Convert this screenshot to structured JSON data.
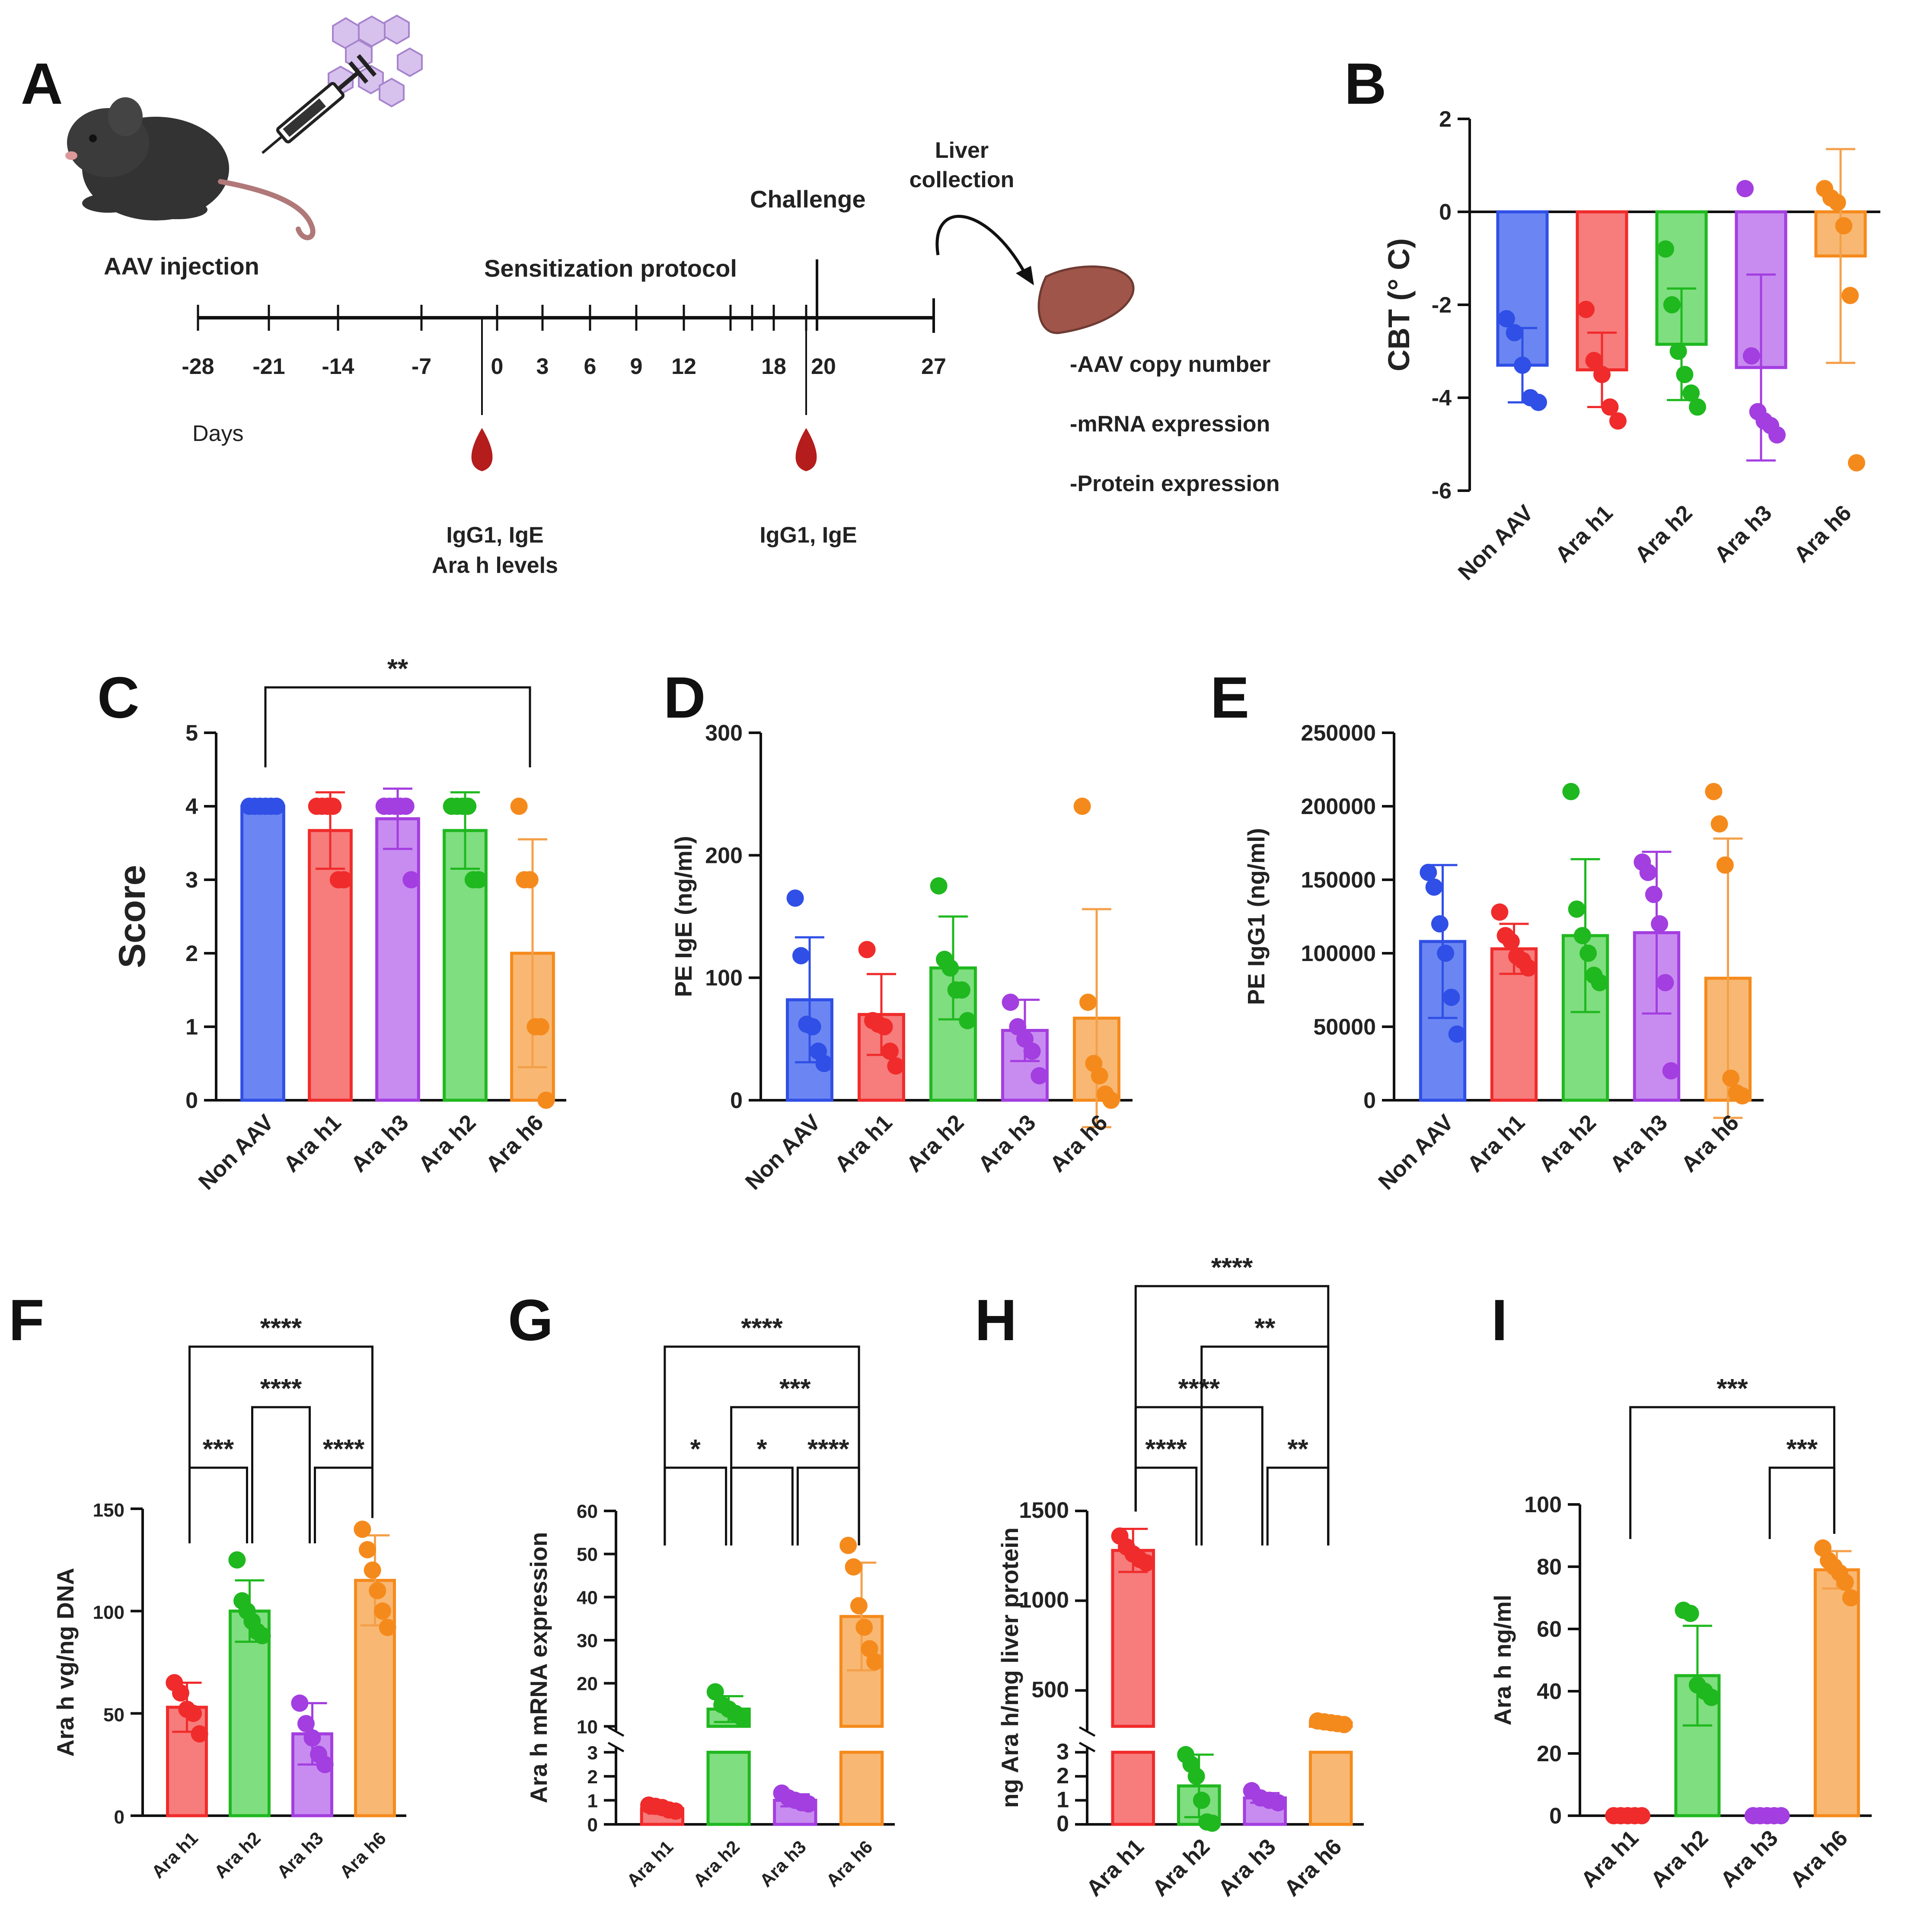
{
  "colors": {
    "blue": "#2f4fe6",
    "blue_fill": "#6b86f2",
    "red": "#f02b2b",
    "red_fill": "#f77c7c",
    "green": "#1fb81f",
    "green_fill": "#7fde7f",
    "purple": "#a33ee0",
    "purple_fill": "#c88cf0",
    "orange": "#f58a1c",
    "orange_fill": "#f8b873",
    "err_orange": "#f4a04a",
    "axis": "#111111",
    "blood": "#b51c1c",
    "liver": "#a0554a",
    "mouse": "#333333",
    "virus": "#c9a8e6"
  },
  "panel_a": {
    "letter": "A",
    "aav_injection": "AAV injection",
    "sensitization": "Sensitization protocol",
    "challenge": "Challenge",
    "liver_collection_line1": "Liver",
    "liver_collection_line2": "collection",
    "days_label": "Days",
    "days": [
      "-28",
      "-21",
      "-14",
      "-7",
      "0",
      "3",
      "6",
      "9",
      "12",
      "18",
      "20",
      "27"
    ],
    "bleed1_line1": "IgG1, IgE",
    "bleed1_line2": "Ara h levels",
    "bleed2": "IgG1, IgE",
    "readouts": [
      "-AAV copy number",
      "-mRNA expression",
      "-Protein expression"
    ],
    "mouse_icon": "mouse-icon",
    "syringe_icon": "syringe-icon",
    "virus_icon": "virus-particles-icon",
    "blood_icon": "blood-drop-icon",
    "liver_icon": "liver-icon"
  },
  "chart_data": [
    {
      "panel": "B",
      "type": "bar",
      "title": "",
      "ylabel": "CBT (° C)",
      "xlabel": "",
      "ylim": [
        -6,
        2
      ],
      "yticks": [
        2,
        0,
        -2,
        -4,
        -6
      ],
      "categories": [
        "Non AAV",
        "Ara h1",
        "Ara h2",
        "Ara h3",
        "Ara h6"
      ],
      "series": [
        {
          "name": "CBT",
          "values": [
            -3.3,
            -3.4,
            -2.85,
            -3.35,
            -0.95
          ],
          "sd": [
            0.8,
            0.8,
            1.2,
            2.0,
            2.3
          ],
          "points": [
            [
              -2.3,
              -2.6,
              -3.3,
              -4.0,
              -4.1
            ],
            [
              -2.1,
              -3.2,
              -3.5,
              -4.2,
              -4.5
            ],
            [
              -0.8,
              -2.0,
              -3.0,
              -3.5,
              -3.9,
              -4.2
            ],
            [
              0.5,
              -3.1,
              -4.3,
              -4.5,
              -4.6,
              -4.8
            ],
            [
              0.5,
              0.3,
              0.2,
              -0.3,
              -1.8,
              -5.4
            ]
          ]
        }
      ],
      "significance": []
    },
    {
      "panel": "C",
      "type": "bar",
      "title": "",
      "ylabel": "Score",
      "xlabel": "",
      "ylim": [
        0,
        5
      ],
      "yticks": [
        0,
        1,
        2,
        3,
        4,
        5
      ],
      "categories": [
        "Non AAV",
        "Ara h1",
        "Ara h3",
        "Ara h2",
        "Ara h6"
      ],
      "series": [
        {
          "name": "Score",
          "values": [
            4,
            3.67,
            3.83,
            3.67,
            2.0
          ],
          "sd": [
            0,
            0.52,
            0.41,
            0.52,
            1.55
          ],
          "points": [
            [
              4,
              4,
              4,
              4,
              4,
              4
            ],
            [
              4,
              4,
              4,
              4,
              3,
              3
            ],
            [
              4,
              4,
              4,
              4,
              4,
              3
            ],
            [
              4,
              4,
              4,
              4,
              3,
              3
            ],
            [
              4,
              3,
              3,
              1,
              1,
              0
            ]
          ]
        }
      ],
      "significance": [
        {
          "from": 0,
          "to": 4,
          "label": "**"
        }
      ]
    },
    {
      "panel": "D",
      "type": "bar",
      "title": "",
      "ylabel": "PE IgE (ng/ml)",
      "xlabel": "",
      "ylim": [
        0,
        300
      ],
      "yticks": [
        0,
        100,
        200,
        300
      ],
      "categories": [
        "Non AAV",
        "Ara h1",
        "Ara h2",
        "Ara h3",
        "Ara h6"
      ],
      "series": [
        {
          "name": "PE IgE",
          "values": [
            82,
            70,
            108,
            57,
            67
          ],
          "sd": [
            51,
            33,
            42,
            25,
            89
          ],
          "points": [
            [
              165,
              118,
              62,
              60,
              40,
              30
            ],
            [
              123,
              65,
              62,
              60,
              40,
              28
            ],
            [
              175,
              115,
              108,
              90,
              90,
              65
            ],
            [
              80,
              60,
              50,
              40,
              20
            ],
            [
              240,
              80,
              30,
              20,
              5,
              0
            ]
          ]
        }
      ],
      "significance": []
    },
    {
      "panel": "E",
      "type": "bar",
      "title": "",
      "ylabel": "PE IgG1 (ng/ml)",
      "xlabel": "",
      "ylim": [
        0,
        250000
      ],
      "yticks": [
        0,
        50000,
        100000,
        150000,
        200000,
        250000
      ],
      "categories": [
        "Non AAV",
        "Ara h1",
        "Ara h2",
        "Ara h3",
        "Ara h6"
      ],
      "series": [
        {
          "name": "PE IgG1",
          "values": [
            108000,
            103000,
            112000,
            114000,
            83000
          ],
          "sd": [
            52000,
            17000,
            52000,
            55000,
            95000
          ],
          "points": [
            [
              155000,
              145000,
              120000,
              100000,
              70000,
              45000
            ],
            [
              128000,
              112000,
              108000,
              98000,
              95000,
              90000
            ],
            [
              210000,
              130000,
              112000,
              100000,
              85000,
              80000
            ],
            [
              162000,
              155000,
              140000,
              120000,
              80000,
              20000
            ],
            [
              210000,
              188000,
              160000,
              15000,
              5000,
              3000
            ]
          ]
        }
      ],
      "significance": []
    },
    {
      "panel": "F",
      "type": "bar",
      "title": "",
      "ylabel": "Ara h vg/ng DNA",
      "xlabel": "",
      "ylim": [
        0,
        150
      ],
      "yticks": [
        0,
        50,
        100,
        150
      ],
      "categories": [
        "Ara h1",
        "Ara h2",
        "Ara h3",
        "Ara h6"
      ],
      "series": [
        {
          "name": "vg/ng DNA",
          "values": [
            53,
            100,
            40,
            115
          ],
          "sd": [
            12,
            15,
            15,
            22
          ],
          "points": [
            [
              65,
              60,
              52,
              50,
              40
            ],
            [
              125,
              105,
              100,
              95,
              90,
              88
            ],
            [
              55,
              45,
              38,
              30,
              25
            ],
            [
              140,
              130,
              120,
              110,
              100,
              92
            ]
          ]
        }
      ],
      "significance": [
        {
          "from": 0,
          "to": 1,
          "label": "***"
        },
        {
          "from": 2,
          "to": 3,
          "label": "****"
        },
        {
          "from": 1,
          "to": 2,
          "label": "****"
        },
        {
          "from": 0,
          "to": 3,
          "label": "****"
        }
      ]
    },
    {
      "panel": "G",
      "type": "bar",
      "title": "",
      "ylabel": "Ara h mRNA expression",
      "xlabel": "",
      "ylim": [
        0,
        60
      ],
      "axis_break": {
        "lower": [
          0,
          3
        ],
        "upper": [
          10,
          60
        ]
      },
      "yticks_lower": [
        0,
        1,
        2,
        3
      ],
      "yticks_upper": [
        10,
        20,
        30,
        40,
        50,
        60
      ],
      "categories": [
        "Ara h1",
        "Ara h2",
        "Ara h3",
        "Ara h6"
      ],
      "series": [
        {
          "name": "mRNA",
          "values": [
            0.65,
            14,
            1.0,
            35.5
          ],
          "sd": [
            0.2,
            3.0,
            0.25,
            12.5
          ],
          "points": [
            [
              0.8,
              0.75,
              0.7,
              0.6,
              0.55
            ],
            [
              18,
              15,
              14,
              13,
              12
            ],
            [
              1.3,
              1.1,
              1.0,
              0.9,
              0.85
            ],
            [
              52,
              47,
              38,
              33,
              28,
              25
            ]
          ]
        }
      ],
      "significance": [
        {
          "from": 0,
          "to": 1,
          "label": "*"
        },
        {
          "from": 1,
          "to": 2,
          "label": "*"
        },
        {
          "from": 2,
          "to": 3,
          "label": "****"
        },
        {
          "from": 1,
          "to": 3,
          "label": "***"
        },
        {
          "from": 0,
          "to": 3,
          "label": "****"
        }
      ]
    },
    {
      "panel": "H",
      "type": "bar",
      "title": "",
      "ylabel": "ng Ara h/mg liver protein",
      "xlabel": "",
      "ylim": [
        0,
        1500
      ],
      "axis_break": {
        "lower": [
          0,
          3
        ],
        "upper": [
          300,
          1500
        ]
      },
      "yticks_lower": [
        0,
        1,
        2,
        3
      ],
      "yticks_upper": [
        500,
        1000,
        1500
      ],
      "categories": [
        "Ara h1",
        "Ara h2",
        "Ara h3",
        "Ara h6"
      ],
      "series": [
        {
          "name": "protein",
          "values": [
            1280,
            1.6,
            1.1,
            320
          ],
          "sd": [
            120,
            1.3,
            0.2,
            20
          ],
          "points": [
            [
              1360,
              1300,
              1260,
              1230,
              1210
            ],
            [
              2.9,
              2.5,
              2.0,
              1.0,
              0.1,
              0.05
            ],
            [
              1.4,
              1.1,
              1.0,
              0.9
            ],
            [
              330,
              325,
              320,
              315,
              310
            ]
          ]
        }
      ],
      "significance": [
        {
          "from": 0,
          "to": 1,
          "label": "****"
        },
        {
          "from": 2,
          "to": 3,
          "label": "**"
        },
        {
          "from": 0,
          "to": 2,
          "label": "****"
        },
        {
          "from": 1,
          "to": 3,
          "label": "**"
        },
        {
          "from": 0,
          "to": 3,
          "label": "****"
        }
      ]
    },
    {
      "panel": "I",
      "type": "bar",
      "title": "",
      "ylabel": "Ara h ng/ml",
      "xlabel": "",
      "ylim": [
        0,
        100
      ],
      "yticks": [
        0,
        20,
        40,
        60,
        80,
        100
      ],
      "categories": [
        "Ara h1",
        "Ara h2",
        "Ara h3",
        "Ara h6"
      ],
      "series": [
        {
          "name": "ng/ml",
          "values": [
            0,
            45,
            0,
            79
          ],
          "sd": [
            0,
            16,
            0,
            6
          ],
          "points": [
            [
              0,
              0,
              0,
              0,
              0
            ],
            [
              66,
              65,
              42,
              40,
              38
            ],
            [
              0,
              0,
              0,
              0,
              0
            ],
            [
              86,
              82,
              80,
              78,
              75,
              70
            ]
          ]
        }
      ],
      "significance": [
        {
          "from": 2,
          "to": 3,
          "label": "***"
        },
        {
          "from": 0,
          "to": 3,
          "label": "***"
        }
      ]
    }
  ]
}
